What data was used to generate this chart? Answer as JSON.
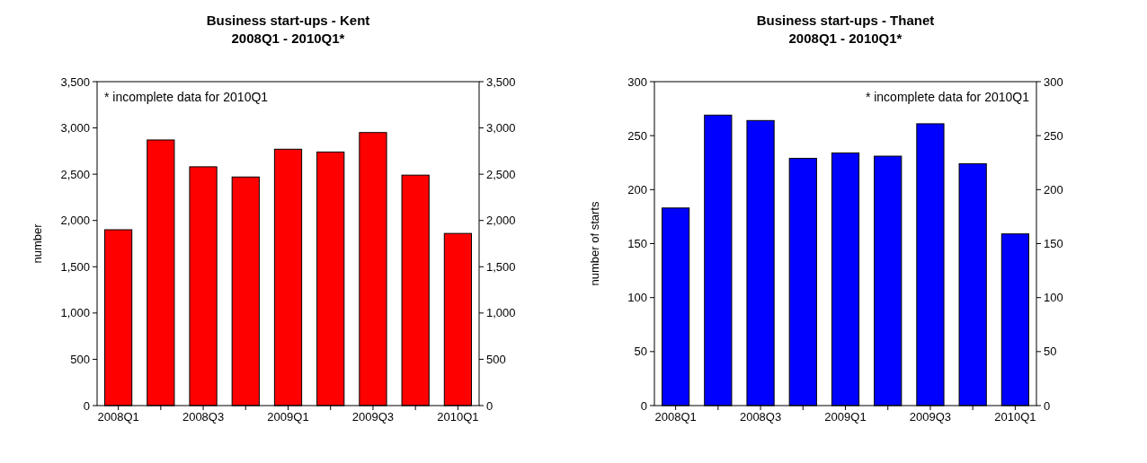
{
  "chart_data": [
    {
      "type": "bar",
      "title": "Business start-ups - Kent\n2008Q1 - 2010Q1*",
      "ylabel": "number",
      "annotations": [
        "* incomplete data for 2010Q1"
      ],
      "categories": [
        "2008Q1",
        null,
        "2008Q3",
        null,
        "2009Q1",
        null,
        "2009Q3",
        null,
        "2010Q1"
      ],
      "values": [
        1900,
        2870,
        2580,
        2470,
        2770,
        2740,
        2950,
        2490,
        1860
      ],
      "color": "#ff0000",
      "ylim": [
        0,
        3500
      ],
      "yticks": [
        0,
        500,
        {
          "value": 1000,
          "label": "1,000"
        },
        {
          "value": 1500,
          "label": "1,500"
        },
        {
          "value": 2000,
          "label": "2,000"
        },
        {
          "value": 2500,
          "label": "2,500"
        },
        {
          "value": 3000,
          "label": "3,000"
        },
        {
          "value": 3500,
          "label": "3,500"
        }
      ],
      "y2lim": [
        0,
        3500
      ],
      "y2ticks": [
        0,
        500,
        {
          "value": 1000,
          "label": "1,000"
        },
        {
          "value": 1500,
          "label": "1,500"
        },
        {
          "value": 2000,
          "label": "2,000"
        },
        {
          "value": 2500,
          "label": "2,500"
        },
        {
          "value": 3000,
          "label": "3,000"
        },
        {
          "value": 3500,
          "label": "3,500"
        }
      ],
      "grid": false
    },
    {
      "type": "bar",
      "title": "Business start-ups - Thanet\n2008Q1 - 2010Q1*",
      "ylabel": "number of starts",
      "annotations": [
        "* incomplete data for 2010Q1"
      ],
      "categories": [
        "2008Q1",
        null,
        "2008Q3",
        null,
        "2009Q1",
        null,
        "2009Q3",
        null,
        "2010Q1"
      ],
      "values": [
        183,
        269,
        264,
        229,
        234,
        231,
        261,
        224,
        159
      ],
      "color": "#0000ff",
      "ylim": [
        0,
        300
      ],
      "yticks": [
        0,
        50,
        100,
        150,
        200,
        250,
        300
      ],
      "y2lim": [
        0,
        300
      ],
      "y2ticks": [
        0,
        50,
        100,
        150,
        200,
        250,
        300
      ],
      "grid": false
    }
  ]
}
